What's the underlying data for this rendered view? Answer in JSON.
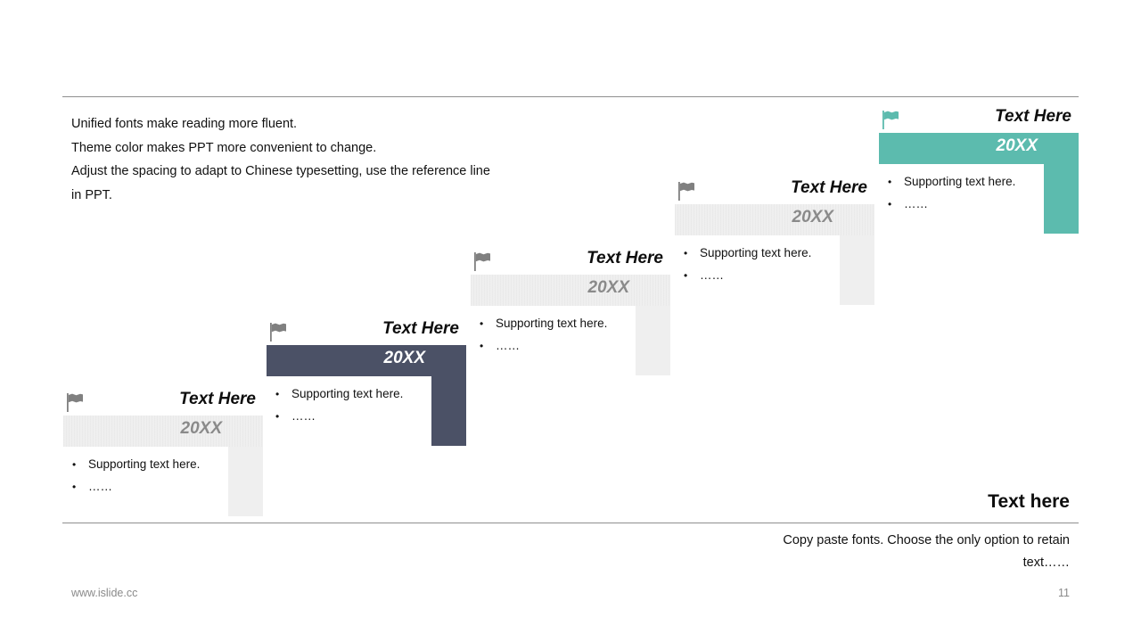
{
  "intro": {
    "lines": [
      "Unified fonts make reading more fluent.",
      "Theme color makes PPT more convenient to change.",
      "Adjust the spacing to adapt to Chinese typesetting, use the reference line",
      "in PPT."
    ]
  },
  "steps": [
    {
      "title": "Text Here",
      "year": "20XX",
      "style": "light",
      "bullets": [
        "Supporting text here.",
        "……"
      ]
    },
    {
      "title": "Text Here",
      "year": "20XX",
      "style": "dark",
      "bullets": [
        "Supporting text here.",
        "……"
      ]
    },
    {
      "title": "Text Here",
      "year": "20XX",
      "style": "light",
      "bullets": [
        "Supporting text here.",
        "……"
      ]
    },
    {
      "title": "Text Here",
      "year": "20XX",
      "style": "light",
      "bullets": [
        "Supporting text here.",
        "……"
      ]
    },
    {
      "title": "Text Here",
      "year": "20XX",
      "style": "teal",
      "bullets": [
        "Supporting text here.",
        "……"
      ]
    }
  ],
  "side": {
    "title": "Text here",
    "text_line1": "Copy paste fonts. Choose the only option to retain",
    "text_line2": "text……"
  },
  "footer": {
    "url": "www.islide.cc",
    "page": "11"
  },
  "colors": {
    "dark": "#4b5166",
    "teal": "#5cbbae",
    "light": "#efefef",
    "flag_gray": "#808080"
  },
  "icons": {
    "step_marker": "flag-icon"
  }
}
